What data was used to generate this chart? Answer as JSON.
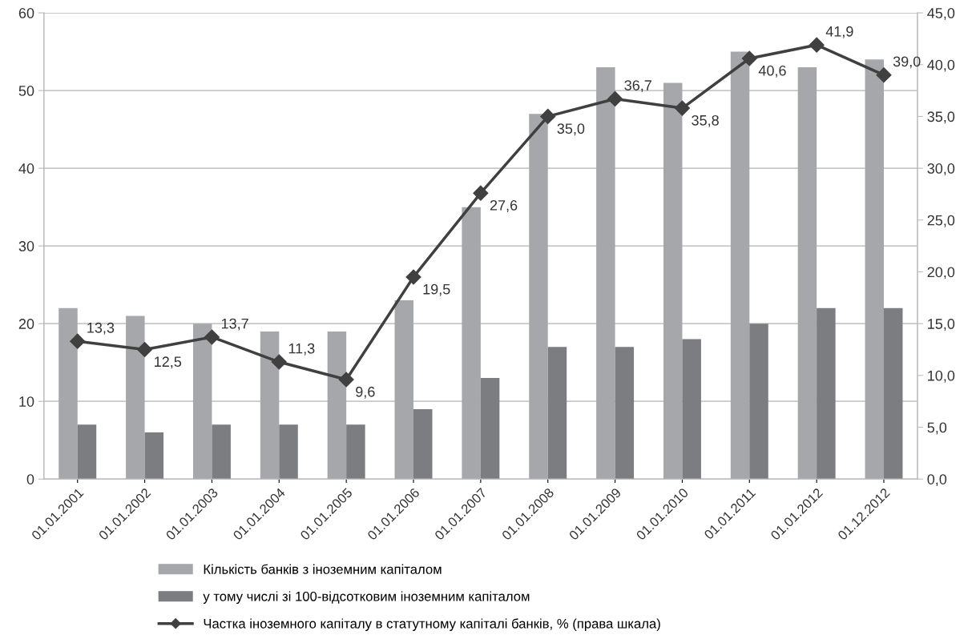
{
  "chart_data": {
    "type": "bar",
    "categories": [
      "01.01.2001",
      "01.01.2002",
      "01.01.2003",
      "01.01.2004",
      "01.01.2005",
      "01.01.2006",
      "01.01.2007",
      "01.01.2008",
      "01.01.2009",
      "01.01.2010",
      "01.01.2011",
      "01.01.2012",
      "01.12.2012"
    ],
    "series": [
      {
        "name": "Кількість банків з іноземним капіталом",
        "color": "#a6a7aa",
        "values": [
          22,
          21,
          20,
          19,
          19,
          23,
          35,
          47,
          53,
          51,
          55,
          53,
          54
        ]
      },
      {
        "name": "у тому числі зі 100-відсотковим іноземним капіталом",
        "color": "#7c7d81",
        "values": [
          7,
          6,
          7,
          7,
          7,
          9,
          13,
          17,
          17,
          18,
          20,
          22,
          22
        ]
      },
      {
        "name": "Частка іноземного капіталу в статутному капіталі банків, % (права шкала)",
        "type": "line",
        "axis": "y2",
        "color": "#404040",
        "marker": "diamond",
        "values": [
          13.3,
          12.5,
          13.7,
          11.3,
          9.6,
          19.5,
          27.6,
          35.0,
          36.7,
          35.8,
          40.6,
          41.9,
          39.0
        ],
        "value_labels": [
          "13,3",
          "12,5",
          "13,7",
          "11,3",
          "9,6",
          "19,5",
          "27,6",
          "35,0",
          "36,7",
          "35,8",
          "40,6",
          "41,9",
          "39,0"
        ]
      }
    ],
    "ylim": [
      0,
      60
    ],
    "yticks": [
      0,
      10,
      20,
      30,
      40,
      50,
      60
    ],
    "y2lim": [
      0,
      45
    ],
    "y2ticks": [
      {
        "value": 0,
        "label": "0,0"
      },
      {
        "value": 5,
        "label": "5,0"
      },
      {
        "value": 10,
        "label": "10,0"
      },
      {
        "value": 15,
        "label": "15,0"
      },
      {
        "value": 20,
        "label": "20,0"
      },
      {
        "value": 25,
        "label": "25,0"
      },
      {
        "value": 30,
        "label": "30,0"
      },
      {
        "value": 35,
        "label": "35,0"
      },
      {
        "value": 40,
        "label": "40,0"
      },
      {
        "value": 45,
        "label": "45,0"
      }
    ],
    "grid": "y",
    "legend": "bottom"
  }
}
